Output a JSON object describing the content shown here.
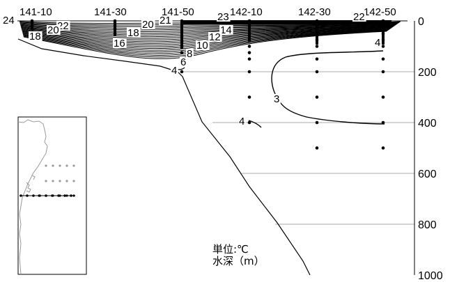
{
  "chart_data": {
    "type": "contour",
    "station_labels": [
      "141-10",
      "141-30",
      "141-50",
      "142-10",
      "142-30",
      "142-50"
    ],
    "depth_ticks": [
      0,
      200,
      400,
      600,
      800,
      1000
    ],
    "depth_range": [
      0,
      1000
    ],
    "unit_note": [
      "単位:℃",
      "水深（m）"
    ],
    "contour_labels": [
      "24",
      "23",
      "22",
      "22",
      "21",
      "20",
      "20",
      "18",
      "18",
      "16",
      "14",
      "12",
      "10",
      "8",
      "6",
      "4",
      "4",
      "4",
      "3"
    ],
    "sample_columns": [
      {
        "station": "141-10",
        "depths": [
          0,
          5,
          10,
          20,
          30
        ]
      },
      {
        "station": "141-30",
        "depths": [
          0,
          10,
          20,
          30,
          50,
          75
        ]
      },
      {
        "station": "141-50",
        "depths": [
          0,
          20,
          40,
          60,
          80,
          100,
          125,
          150,
          175,
          200
        ]
      },
      {
        "station": "142-10",
        "depths": [
          0,
          20,
          50,
          75,
          100,
          125,
          150,
          200,
          300,
          400
        ]
      },
      {
        "station": "142-30",
        "depths": [
          0,
          20,
          50,
          75,
          100,
          150,
          200,
          300,
          400,
          500
        ]
      },
      {
        "station": "142-50",
        "depths": [
          0,
          20,
          50,
          75,
          100,
          150,
          200,
          300,
          400,
          500
        ]
      }
    ],
    "grid": "horizontal",
    "inset": "location-map"
  }
}
